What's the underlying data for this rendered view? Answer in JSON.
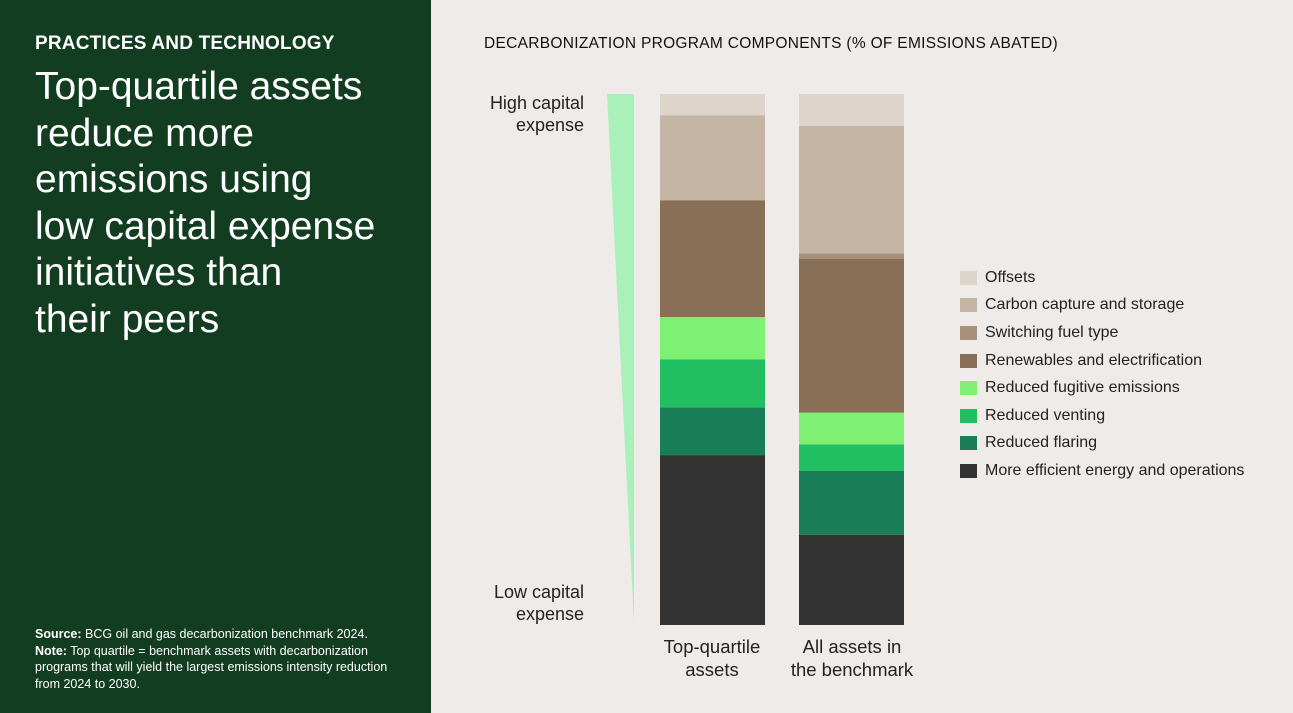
{
  "left_panel": {
    "eyebrow": "PRACTICES AND TECHNOLOGY",
    "headline_lines": [
      "Top-quartile assets",
      "reduce more",
      "emissions using",
      "low capital expense",
      "initiatives than",
      "their peers"
    ],
    "source_label": "Source:",
    "source_text": "BCG oil and gas decarbonization benchmark 2024.",
    "note_label": "Note:",
    "note_text": "Top quartile = benchmark assets with decarbonization programs that will yield the largest emissions intensity reduction from 2024 to 2030."
  },
  "chart_data": {
    "type": "bar",
    "stacked": true,
    "title": "DECARBONIZATION PROGRAM COMPONENTS (% OF EMISSIONS ABATED)",
    "ylabel_top": [
      "High capital",
      "expense"
    ],
    "ylabel_bottom": [
      "Low capital",
      "expense"
    ],
    "categories": [
      [
        "Top-quartile",
        "assets"
      ],
      [
        "All assets in",
        "the benchmark"
      ]
    ],
    "ylim": [
      0,
      100
    ],
    "series": [
      {
        "name": "More efficient energy and operations",
        "color": "#333333",
        "values": [
          32,
          17
        ]
      },
      {
        "name": "Reduced flaring",
        "color": "#197d58",
        "values": [
          9,
          12
        ]
      },
      {
        "name": "Reduced venting",
        "color": "#21bf61",
        "values": [
          9,
          5
        ]
      },
      {
        "name": "Reduced fugitive emissions",
        "color": "#7ef073",
        "values": [
          8,
          6
        ]
      },
      {
        "name": "Renewables and electrification",
        "color": "#8a6f57",
        "values": [
          22,
          29
        ]
      },
      {
        "name": "Switching fuel type",
        "color": "#a8917a",
        "values": [
          0,
          1
        ]
      },
      {
        "name": "Carbon capture and storage",
        "color": "#c4b5a4",
        "values": [
          16,
          24
        ]
      },
      {
        "name": "Offsets",
        "color": "#ddd5cc",
        "values": [
          4,
          6
        ]
      }
    ],
    "legend_order": [
      "Offsets",
      "Carbon capture and storage",
      "Switching fuel type",
      "Renewables and electrification",
      "Reduced fugitive emissions",
      "Reduced venting",
      "Reduced flaring",
      "More efficient energy and operations"
    ],
    "wedge_color": "#aaf0bb"
  }
}
